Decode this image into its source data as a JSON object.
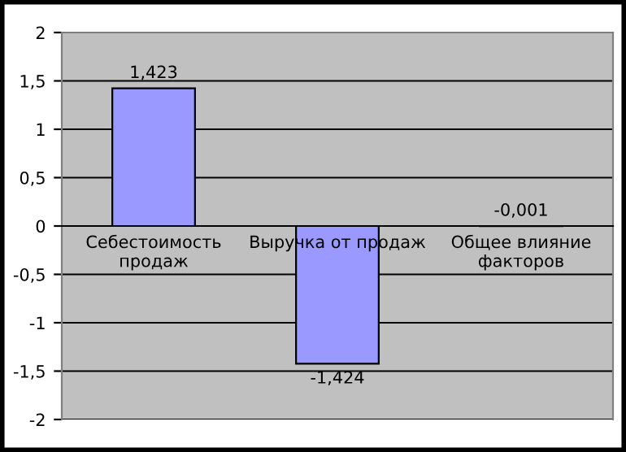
{
  "chart_data": {
    "type": "bar",
    "categories": [
      "Себестоимость продаж",
      "Выручка от продаж",
      "Общее влияние факторов"
    ],
    "values": [
      1.423,
      -1.424,
      -0.001
    ],
    "color": "#9999ff",
    "value_labels": [
      "1,423",
      "-1,424",
      "-0,001"
    ],
    "ylim": [
      -2,
      2
    ],
    "yticks": [
      {
        "value": -2,
        "label": "-2"
      },
      {
        "value": -1.5,
        "label": "-1,5"
      },
      {
        "value": -1,
        "label": "-1"
      },
      {
        "value": -0.5,
        "label": "-0,5"
      },
      {
        "value": 0,
        "label": "0"
      },
      {
        "value": 0.5,
        "label": "0,5"
      },
      {
        "value": 1,
        "label": "1"
      },
      {
        "value": 1.5,
        "label": "1,5"
      },
      {
        "value": 2,
        "label": "2"
      }
    ],
    "grid": "y",
    "legend": false
  }
}
